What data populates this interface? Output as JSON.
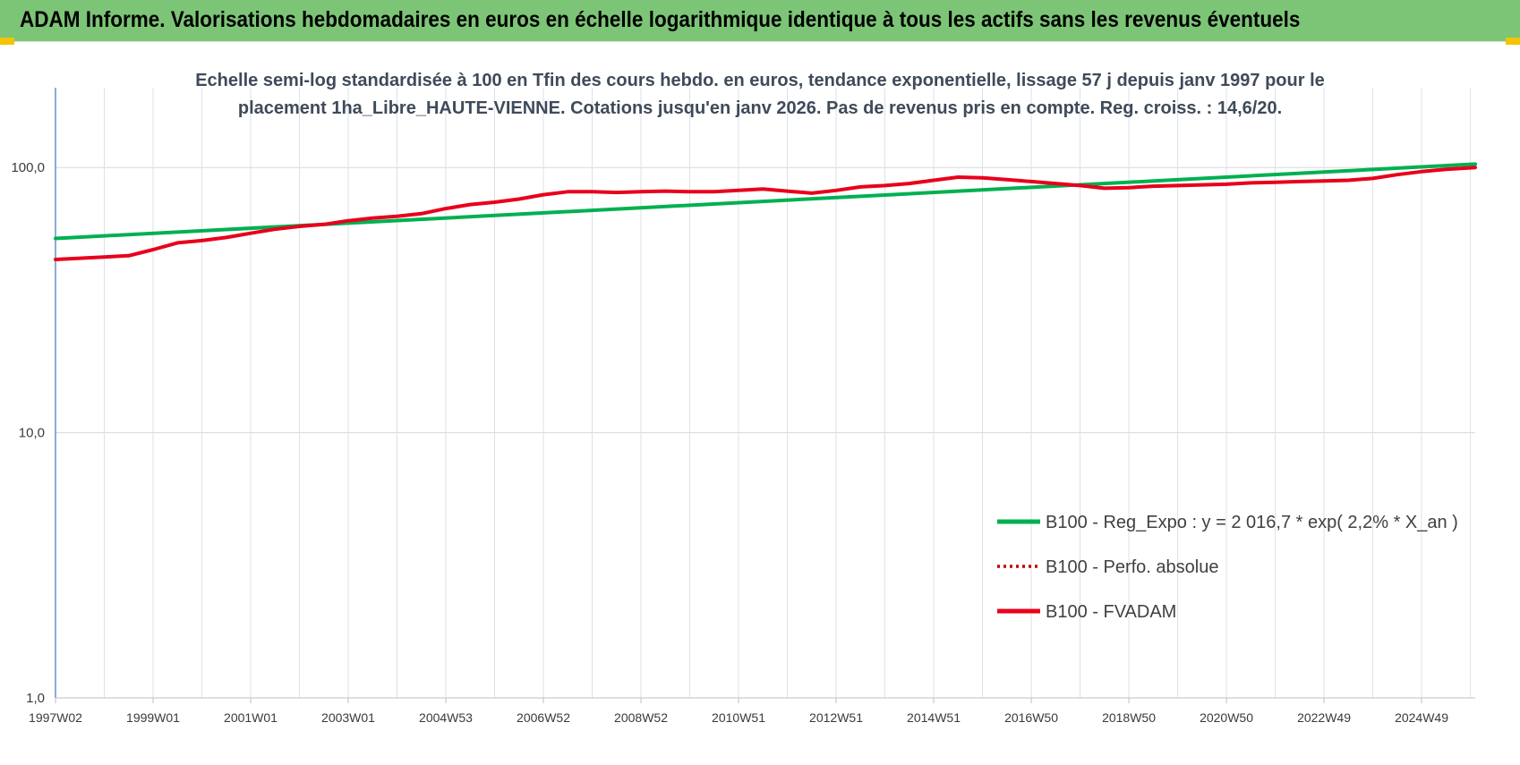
{
  "banner": {
    "title": "ADAM Informe. Valorisations hebdomadaires en euros en échelle logarithmique identique à tous les actifs sans les revenus éventuels"
  },
  "colors": {
    "banner": "#7cc576",
    "trend": "#00b050",
    "fvadam": "#e8001c",
    "perfo": "#c00000",
    "corner": "#f2c500"
  },
  "chart_data": {
    "type": "line",
    "title": "Echelle semi-log standardisée à 100 en Tfin des cours hebdo. en euros, tendance exponentielle, lissage 57 j depuis janv 1997 pour le placement 1ha_Libre_HAUTE-VIENNE. Cotations jusqu'en janv 2026. Pas de revenus pris en compte. Reg. croiss. : 14,6/20.",
    "title_lines": [
      "Echelle semi-log standardisée à 100 en Tfin des cours hebdo. en euros, tendance exponentielle, lissage 57 j depuis janv 1997 pour le",
      "placement 1ha_Libre_HAUTE-VIENNE. Cotations jusqu'en janv 2026. Pas de revenus pris en compte. Reg. croiss. : 14,6/20."
    ],
    "y_scale": "log",
    "ylim": [
      1,
      200
    ],
    "xlim": [
      1997.0,
      2026.1
    ],
    "grid": true,
    "legend_position": "bottom-right",
    "y_ticks": [
      {
        "value": 1,
        "label": "1,0"
      },
      {
        "value": 10,
        "label": "10,0"
      },
      {
        "value": 100,
        "label": "100,0"
      }
    ],
    "x_ticks": [
      {
        "x": 1997.0,
        "label": "1997W02"
      },
      {
        "x": 1999.0,
        "label": "1999W01"
      },
      {
        "x": 2001.0,
        "label": "2001W01"
      },
      {
        "x": 2003.0,
        "label": "2003W01"
      },
      {
        "x": 2005.0,
        "label": "2004W53"
      },
      {
        "x": 2007.0,
        "label": "2006W52"
      },
      {
        "x": 2009.0,
        "label": "2008W52"
      },
      {
        "x": 2011.0,
        "label": "2010W51"
      },
      {
        "x": 2013.0,
        "label": "2012W51"
      },
      {
        "x": 2015.0,
        "label": "2014W51"
      },
      {
        "x": 2017.0,
        "label": "2016W50"
      },
      {
        "x": 2019.0,
        "label": "2018W50"
      },
      {
        "x": 2021.0,
        "label": "2020W50"
      },
      {
        "x": 2023.0,
        "label": "2022W49"
      },
      {
        "x": 2025.0,
        "label": "2024W49"
      }
    ],
    "series": [
      {
        "name": "B100 - Reg_Expo : y = 2 016,7 * exp( 2,2% *  X_an )",
        "key": "trend",
        "style": "solid-thick",
        "points": [
          [
            1997.0,
            54.0
          ],
          [
            2026.1,
            103.0
          ]
        ]
      },
      {
        "name": "B100 - Perfo. absolue",
        "key": "perfo",
        "style": "dotted",
        "points": []
      },
      {
        "name": "B100 - FVADAM",
        "key": "fvadam",
        "style": "solid-thick",
        "points": [
          [
            1997.0,
            45.0
          ],
          [
            1998.0,
            46.0
          ],
          [
            1998.5,
            46.5
          ],
          [
            1999.0,
            49.0
          ],
          [
            1999.5,
            52.0
          ],
          [
            2000.0,
            53.0
          ],
          [
            2000.5,
            54.5
          ],
          [
            2001.0,
            56.5
          ],
          [
            2001.5,
            58.5
          ],
          [
            2002.0,
            60.0
          ],
          [
            2002.5,
            61.0
          ],
          [
            2003.0,
            63.0
          ],
          [
            2003.5,
            64.5
          ],
          [
            2004.0,
            65.5
          ],
          [
            2004.5,
            67.0
          ],
          [
            2005.0,
            70.0
          ],
          [
            2005.5,
            72.5
          ],
          [
            2006.0,
            74.0
          ],
          [
            2006.5,
            76.0
          ],
          [
            2007.0,
            79.0
          ],
          [
            2007.5,
            81.0
          ],
          [
            2008.0,
            81.0
          ],
          [
            2008.5,
            80.5
          ],
          [
            2009.0,
            81.0
          ],
          [
            2009.5,
            81.5
          ],
          [
            2010.0,
            81.0
          ],
          [
            2010.5,
            81.0
          ],
          [
            2011.0,
            82.0
          ],
          [
            2011.5,
            83.0
          ],
          [
            2012.0,
            81.5
          ],
          [
            2012.5,
            80.0
          ],
          [
            2013.0,
            82.0
          ],
          [
            2013.5,
            84.5
          ],
          [
            2014.0,
            85.5
          ],
          [
            2014.5,
            87.0
          ],
          [
            2015.0,
            89.5
          ],
          [
            2015.5,
            92.0
          ],
          [
            2016.0,
            91.5
          ],
          [
            2016.5,
            90.0
          ],
          [
            2017.0,
            88.5
          ],
          [
            2017.5,
            87.0
          ],
          [
            2018.0,
            85.5
          ],
          [
            2018.5,
            83.5
          ],
          [
            2019.0,
            84.0
          ],
          [
            2019.5,
            85.0
          ],
          [
            2020.0,
            85.5
          ],
          [
            2020.5,
            86.0
          ],
          [
            2021.0,
            86.5
          ],
          [
            2021.5,
            87.5
          ],
          [
            2022.0,
            88.0
          ],
          [
            2022.5,
            88.5
          ],
          [
            2023.0,
            89.0
          ],
          [
            2023.5,
            89.5
          ],
          [
            2024.0,
            91.0
          ],
          [
            2024.5,
            94.0
          ],
          [
            2025.0,
            96.5
          ],
          [
            2025.5,
            98.5
          ],
          [
            2026.1,
            100.0
          ]
        ]
      }
    ]
  }
}
